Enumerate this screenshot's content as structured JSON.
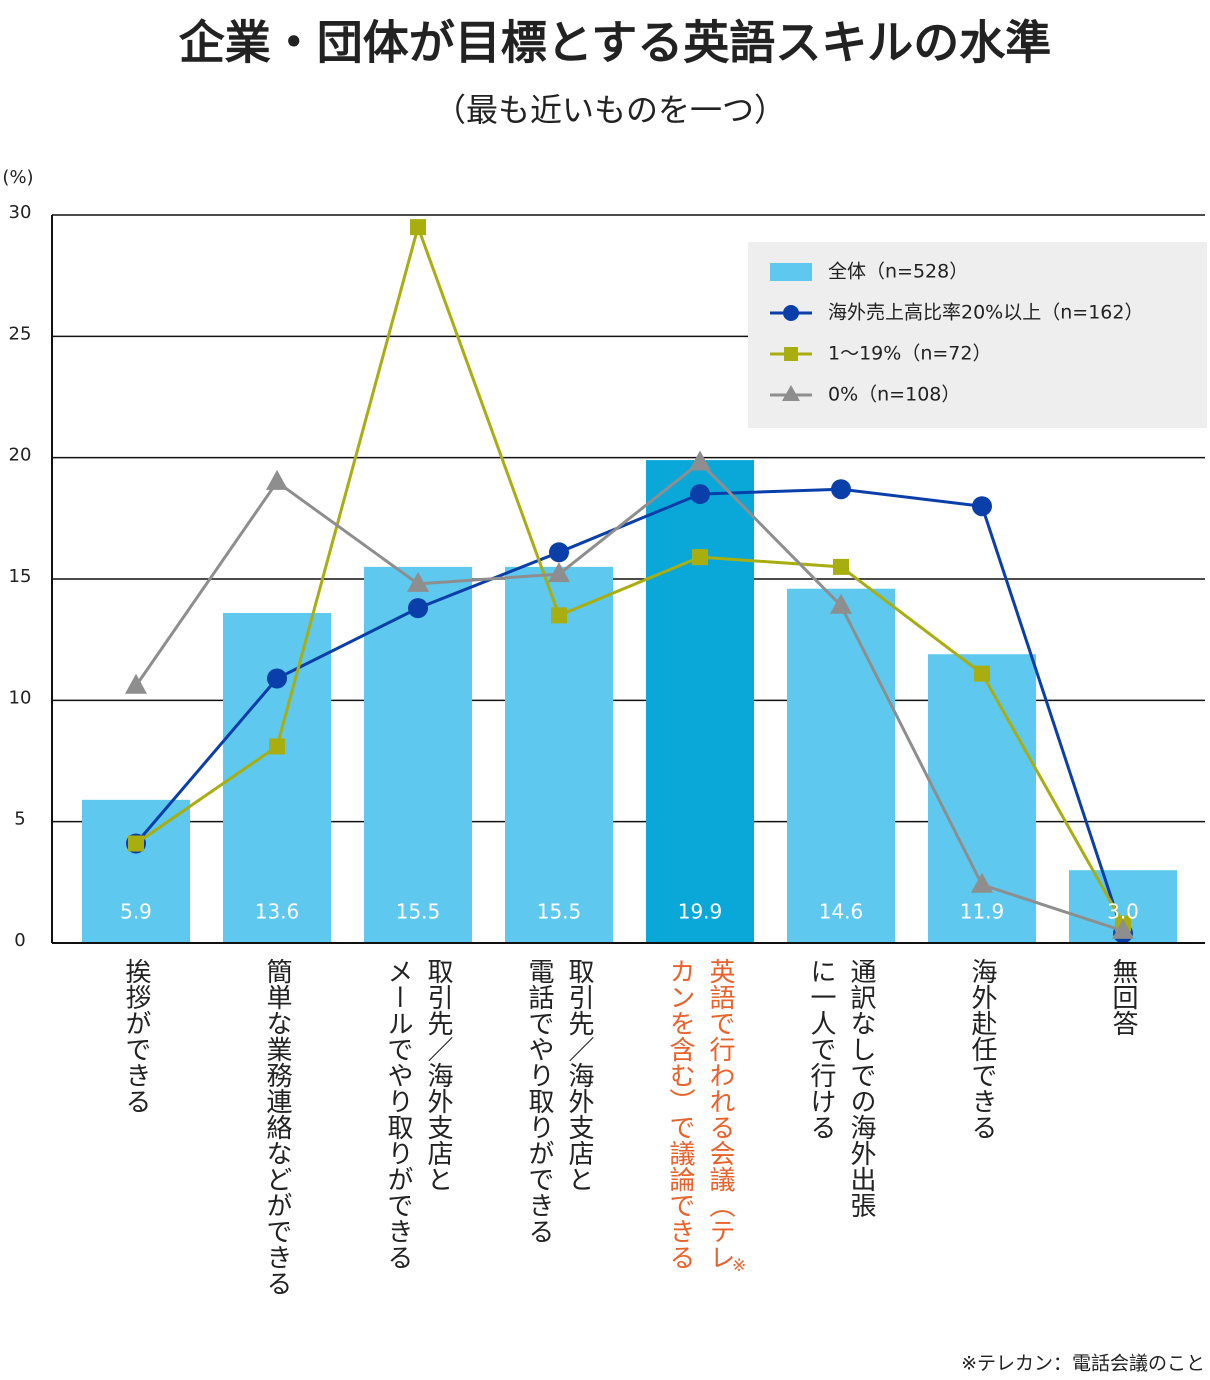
{
  "chart_data": {
    "type": "bar",
    "title": "企業・団体が目標とする英語スキルの水準",
    "subtitle": "（最も近いものを一つ）",
    "y_unit": "(%)",
    "footnote": "※テレカン：電話会議のこと",
    "categories": [
      "挨拶ができる",
      "簡単な業務連絡などができる",
      "取引先／海外支店と\nメールでやり取りができる",
      "取引先／海外支店と\n電話でやり取りができる",
      "英語で行われる会議（テレ\nカンを含む）で議論できる",
      "通訳なしでの海外出張\nに一人で行ける",
      "海外赴任できる",
      "無回答"
    ],
    "category_note_mark": "※",
    "highlight_index": 4,
    "highlight_label_color": "#e8622c",
    "ylim": [
      0,
      30
    ],
    "yticks": [
      0,
      5,
      10,
      15,
      20,
      25,
      30
    ],
    "grid": true,
    "legend_position": "upper right",
    "series": [
      {
        "name": "全体（n=528）",
        "type": "bar",
        "color": "#5ec8ee",
        "highlight_color": "#0aa8d8",
        "values": [
          5.9,
          13.6,
          15.5,
          15.5,
          19.9,
          14.6,
          11.9,
          3.0
        ],
        "value_labels": [
          "5.9",
          "13.6",
          "15.5",
          "15.5",
          "19.9",
          "14.6",
          "11.9",
          "3.0"
        ]
      },
      {
        "name": "海外売上高比率20%以上（n=162）",
        "type": "line",
        "marker": "circle",
        "color": "#0a3ea8",
        "values": [
          4.1,
          10.9,
          13.8,
          16.1,
          18.5,
          18.7,
          18.0,
          0.4
        ]
      },
      {
        "name": "1〜19%（n=72）",
        "type": "line",
        "marker": "square",
        "color": "#a8ae10",
        "values": [
          4.1,
          8.1,
          29.5,
          13.5,
          15.9,
          15.5,
          11.1,
          0.8
        ]
      },
      {
        "name": "0%（n=108）",
        "type": "line",
        "marker": "triangle",
        "color": "#8e8e8e",
        "values": [
          10.6,
          19.0,
          14.8,
          15.2,
          19.8,
          13.9,
          2.4,
          0.5
        ]
      }
    ]
  }
}
